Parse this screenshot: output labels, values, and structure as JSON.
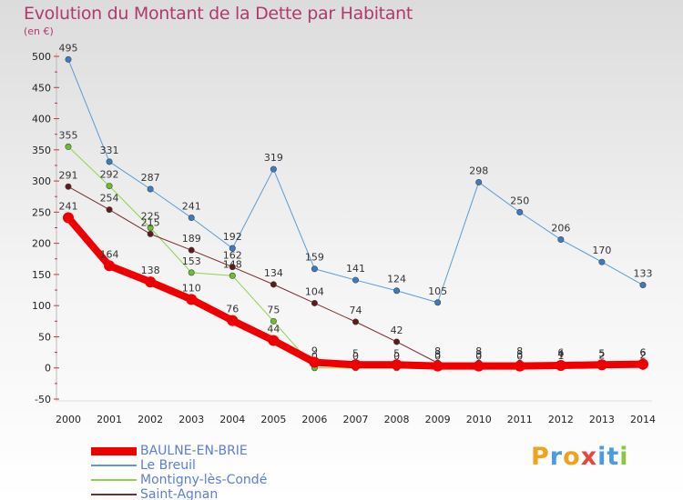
{
  "header": {
    "title": "Evolution du Montant de la Dette par Habitant",
    "unit": "(en €)"
  },
  "logo": {
    "letters": [
      "P",
      "r",
      "o",
      "x",
      "i",
      "t",
      "i"
    ],
    "colors": [
      "#f2a11d",
      "#4a9be0",
      "#f2a11d",
      "#e8453c",
      "#4a9be0",
      "#4a9be0",
      "#8dc63f"
    ]
  },
  "chart_data": {
    "type": "line",
    "title": "Evolution du Montant de la Dette par Habitant",
    "ylabel": "(en €)",
    "xlabel": "",
    "x": [
      "2000",
      "2001",
      "2002",
      "2003",
      "2004",
      "2005",
      "2006",
      "2007",
      "2008",
      "2009",
      "2010",
      "2011",
      "2012",
      "2013",
      "2014"
    ],
    "ylim": [
      -50,
      500
    ],
    "yticks": [
      -50,
      0,
      50,
      100,
      150,
      200,
      250,
      300,
      350,
      400,
      450,
      500
    ],
    "grid": false,
    "legend_position": "bottom-left",
    "series": [
      {
        "name": "Le Breuil",
        "color": "#5b9bd5",
        "marker": "#3a7cc4",
        "width": 1,
        "values": [
          495,
          331,
          287,
          241,
          192,
          319,
          159,
          141,
          124,
          105,
          298,
          250,
          206,
          170,
          133
        ]
      },
      {
        "name": "Montigny-lès-Condé",
        "color": "#8fd14f",
        "marker": "#6cbf2a",
        "width": 1,
        "values": [
          355,
          292,
          225,
          153,
          148,
          75,
          0,
          0,
          0,
          0,
          0,
          0,
          1,
          2,
          2
        ]
      },
      {
        "name": "Saint-Agnan",
        "color": "#7a2b2b",
        "marker": "#5e1a1a",
        "width": 1,
        "values": [
          291,
          254,
          215,
          189,
          162,
          134,
          104,
          74,
          42,
          8,
          8,
          8,
          6,
          5,
          6
        ]
      },
      {
        "name": "BAULNE-EN-BRIE",
        "color": "#ee0000",
        "marker": "#ee0000",
        "width": 8,
        "values": [
          241,
          164,
          138,
          110,
          76,
          44,
          9,
          5,
          5,
          3,
          3,
          3,
          4,
          5,
          6
        ]
      }
    ],
    "legend_order": [
      "BAULNE-EN-BRIE",
      "Le Breuil",
      "Montigny-lès-Condé",
      "Saint-Agnan"
    ]
  }
}
